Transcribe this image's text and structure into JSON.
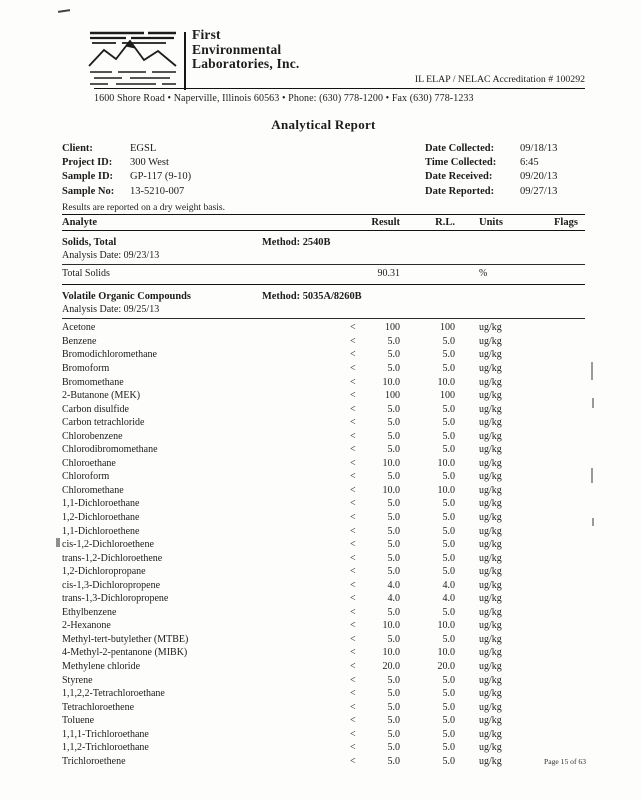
{
  "header": {
    "company_line1": "First",
    "company_line2": "Environmental",
    "company_line3": "Laboratories, Inc.",
    "accreditation": "IL ELAP / NELAC Accreditation # 100292",
    "address": "1600 Shore Road • Naperville, Illinois 60563 • Phone: (630) 778-1200 • Fax (630) 778-1233"
  },
  "title": "Analytical Report",
  "info": {
    "client_label": "Client:",
    "client": "EGSL",
    "project_label": "Project ID:",
    "project": "300 West",
    "sample_id_label": "Sample ID:",
    "sample_id": "GP-117 (9-10)",
    "sample_no_label": "Sample No:",
    "sample_no": "13-5210-007",
    "date_collected_label": "Date Collected:",
    "date_collected": "09/18/13",
    "time_collected_label": "Time Collected:",
    "time_collected": "6:45",
    "date_received_label": "Date Received:",
    "date_received": "09/20/13",
    "date_reported_label": "Date Reported:",
    "date_reported": "09/27/13"
  },
  "note": "Results are reported on a dry weight basis.",
  "table": {
    "columns": [
      "Analyte",
      "Result",
      "R.L.",
      "Units",
      "Flags"
    ],
    "sections": [
      {
        "name": "Solids, Total",
        "method_label": "Method:",
        "method": "2540B",
        "analysis_label": "Analysis Date:",
        "analysis_date": "09/23/13",
        "rows": [
          [
            "Total Solids",
            "90.31",
            "",
            "%"
          ]
        ]
      },
      {
        "name": "Volatile Organic Compounds",
        "method_label": "Method:",
        "method": "5035A/8260B",
        "analysis_label": "Analysis Date:",
        "analysis_date": "09/25/13",
        "rows": [
          [
            "Acetone",
            "< 100",
            "100",
            "ug/kg"
          ],
          [
            "Benzene",
            "< 5.0",
            "5.0",
            "ug/kg"
          ],
          [
            "Bromodichloromethane",
            "< 5.0",
            "5.0",
            "ug/kg"
          ],
          [
            "Bromoform",
            "< 5.0",
            "5.0",
            "ug/kg"
          ],
          [
            "Bromomethane",
            "< 10.0",
            "10.0",
            "ug/kg"
          ],
          [
            "2-Butanone (MEK)",
            "< 100",
            "100",
            "ug/kg"
          ],
          [
            "Carbon disulfide",
            "< 5.0",
            "5.0",
            "ug/kg"
          ],
          [
            "Carbon tetrachloride",
            "< 5.0",
            "5.0",
            "ug/kg"
          ],
          [
            "Chlorobenzene",
            "< 5.0",
            "5.0",
            "ug/kg"
          ],
          [
            "Chlorodibromomethane",
            "< 5.0",
            "5.0",
            "ug/kg"
          ],
          [
            "Chloroethane",
            "< 10.0",
            "10.0",
            "ug/kg"
          ],
          [
            "Chloroform",
            "< 5.0",
            "5.0",
            "ug/kg"
          ],
          [
            "Chloromethane",
            "< 10.0",
            "10.0",
            "ug/kg"
          ],
          [
            "1,1-Dichloroethane",
            "< 5.0",
            "5.0",
            "ug/kg"
          ],
          [
            "1,2-Dichloroethane",
            "< 5.0",
            "5.0",
            "ug/kg"
          ],
          [
            "1,1-Dichloroethene",
            "< 5.0",
            "5.0",
            "ug/kg"
          ],
          [
            "cis-1,2-Dichloroethene",
            "< 5.0",
            "5.0",
            "ug/kg"
          ],
          [
            "trans-1,2-Dichloroethene",
            "< 5.0",
            "5.0",
            "ug/kg"
          ],
          [
            "1,2-Dichloropropane",
            "< 5.0",
            "5.0",
            "ug/kg"
          ],
          [
            "cis-1,3-Dichloropropene",
            "< 4.0",
            "4.0",
            "ug/kg"
          ],
          [
            "trans-1,3-Dichloropropene",
            "< 4.0",
            "4.0",
            "ug/kg"
          ],
          [
            "Ethylbenzene",
            "< 5.0",
            "5.0",
            "ug/kg"
          ],
          [
            "2-Hexanone",
            "< 10.0",
            "10.0",
            "ug/kg"
          ],
          [
            "Methyl-tert-butylether (MTBE)",
            "< 5.0",
            "5.0",
            "ug/kg"
          ],
          [
            "4-Methyl-2-pentanone (MIBK)",
            "< 10.0",
            "10.0",
            "ug/kg"
          ],
          [
            "Methylene chloride",
            "< 20.0",
            "20.0",
            "ug/kg"
          ],
          [
            "Styrene",
            "< 5.0",
            "5.0",
            "ug/kg"
          ],
          [
            "1,1,2,2-Tetrachloroethane",
            "< 5.0",
            "5.0",
            "ug/kg"
          ],
          [
            "Tetrachloroethene",
            "< 5.0",
            "5.0",
            "ug/kg"
          ],
          [
            "Toluene",
            "< 5.0",
            "5.0",
            "ug/kg"
          ],
          [
            "1,1,1-Trichloroethane",
            "< 5.0",
            "5.0",
            "ug/kg"
          ],
          [
            "1,1,2-Trichloroethane",
            "< 5.0",
            "5.0",
            "ug/kg"
          ],
          [
            "Trichloroethene",
            "< 5.0",
            "5.0",
            "ug/kg"
          ]
        ]
      }
    ]
  },
  "footer": {
    "page": "Page 15 of 63"
  }
}
